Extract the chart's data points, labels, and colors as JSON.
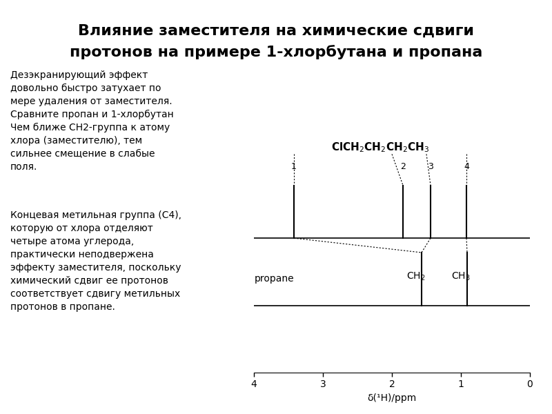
{
  "title_line1": "Влияние заместителя на химические сдвиги",
  "title_line2": "протонов на примере 1-хлорбутана и пропана",
  "title_fontsize": 16,
  "bg_color": "#ffffff",
  "text_color": "#000000",
  "paragraph1": "Дезэкранирующий эффект\nдовольно быстро затухает по\nмере удаления от заместителя.\nСравните пропан и 1-хлорбутан\nЧем ближе СН2-группа к атому\nхлора (заместителю), тем\nсильнее смещение в слабые\nполя.",
  "paragraph2": "Концевая метильная группа (С4),\nкоторую от хлора отделяют\nчетыре атома углерода,\nпрактически неподвержена\nэффекту заместителя, поскольку\nхимический сдвиг ее протонов\nсоответствует сдвигу метильных\nпротонов в пропане.",
  "text_fontsize": 10,
  "carbon_numbers": [
    "1",
    "2",
    "3",
    "4"
  ],
  "butane_peaks_ppm": [
    3.42,
    1.84,
    1.44,
    0.92
  ],
  "propane_ch2_ppm": 1.57,
  "propane_ch3_ppm": 0.91,
  "x_ticks": [
    0,
    1,
    2,
    3,
    4
  ],
  "x_label": "δ(¹H)/ppm"
}
